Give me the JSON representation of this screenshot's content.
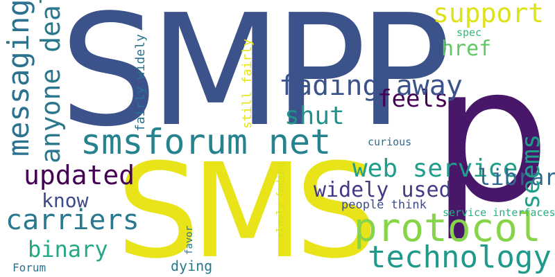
{
  "words": [
    {
      "text": "SMPP",
      "color": "#3b528b"
    },
    {
      "text": "p",
      "color": "#481769"
    },
    {
      "text": "SMS",
      "color": "#e8e419"
    },
    {
      "text": "protocol",
      "color": "#86d549"
    },
    {
      "text": "technology",
      "color": "#1f9a8a"
    },
    {
      "text": "smsforum net",
      "color": "#26828e"
    },
    {
      "text": "support",
      "color": "#dde318"
    },
    {
      "text": "updated",
      "color": "#440154"
    },
    {
      "text": "carriers",
      "color": "#2a788e"
    },
    {
      "text": "know",
      "color": "#3e4989"
    },
    {
      "text": "binary",
      "color": "#22a884"
    },
    {
      "text": "Forum",
      "color": "#2c728e"
    },
    {
      "text": "dying",
      "color": "#2a788e"
    },
    {
      "text": "messaging aggregators",
      "color": "#2c728e"
    },
    {
      "text": "anyone dealt",
      "color": "#2a788e"
    },
    {
      "text": "people think",
      "color": "#3e4a89"
    },
    {
      "text": "service interfaces",
      "color": "#2ab07f"
    },
    {
      "text": "widely used",
      "color": "#443983"
    },
    {
      "text": "web service",
      "color": "#1f9e89"
    },
    {
      "text": "libraries",
      "color": "#31688e"
    },
    {
      "text": "seems",
      "color": "#1f9e89"
    },
    {
      "text": "shut",
      "color": "#21918c"
    },
    {
      "text": "curious",
      "color": "#2f6c8e"
    },
    {
      "text": "feels",
      "color": "#440154"
    },
    {
      "text": "fading away",
      "color": "#3b528b"
    },
    {
      "text": "href",
      "color": "#5ec962"
    },
    {
      "text": "spec",
      "color": "#35b779"
    },
    {
      "text": "favor",
      "color": "#2a788e"
    },
    {
      "text": "slowly fading",
      "color": "#d5e21a"
    },
    {
      "text": "still fairly",
      "color": "#e5e419"
    },
    {
      "text": "fairly widely",
      "color": "#2c728e"
    }
  ]
}
